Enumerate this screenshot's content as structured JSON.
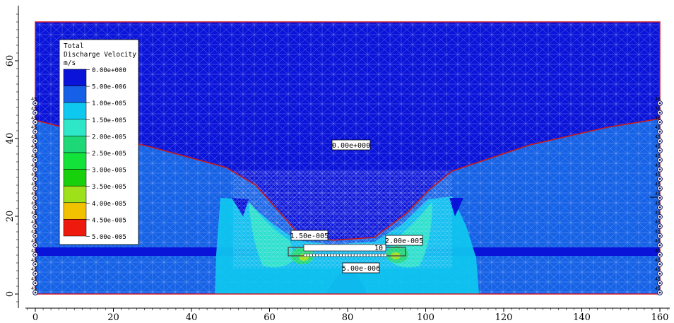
{
  "figure": {
    "legend": {
      "title_lines": [
        "Total",
        "Discharge Velocity",
        "m/s"
      ],
      "items": [
        {
          "label": "0.00e+000",
          "color": "#0a14d8"
        },
        {
          "label": "5.00e-006",
          "color": "#1560e6"
        },
        {
          "label": "1.00e-005",
          "color": "#0fc8f0"
        },
        {
          "label": "1.50e-005",
          "color": "#2ee6c8"
        },
        {
          "label": "2.00e-005",
          "color": "#1ed878"
        },
        {
          "label": "2.50e-005",
          "color": "#12e23a"
        },
        {
          "label": "3.00e-005",
          "color": "#18d00c"
        },
        {
          "label": "3.50e-005",
          "color": "#9ee01a"
        },
        {
          "label": "4.00e-005",
          "color": "#f2c200"
        },
        {
          "label": "4.50e-005",
          "color": "#ee1a0e"
        },
        {
          "label": "5.00e-005",
          "color": "#ffffff"
        }
      ]
    },
    "axes": {
      "x_ticks": [
        "0",
        "20",
        "40",
        "60",
        "80",
        "100",
        "120",
        "140",
        "160"
      ],
      "y_ticks": [
        "0",
        "20",
        "40",
        "60"
      ]
    },
    "annotations": [
      {
        "label": "0.00e+000"
      },
      {
        "label": "1.50e-005"
      },
      {
        "label": "2.00e-005"
      },
      {
        "label": "5.00e-006"
      }
    ],
    "liner_label": "10",
    "boundary_marker_label": "45",
    "colors": {
      "outline": "#d01020",
      "phreatic": "#cc1818",
      "mesh": "#c8d0ff",
      "grout_layer": "#0a14d8"
    }
  }
}
